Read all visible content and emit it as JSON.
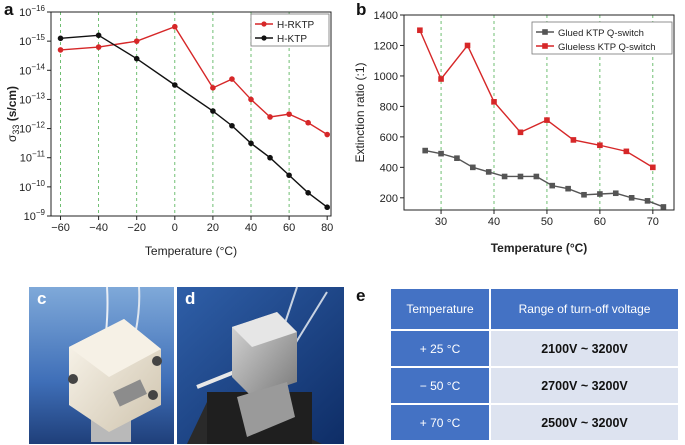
{
  "panels": {
    "a": "a",
    "b": "b",
    "c": "c",
    "d": "d",
    "e": "e"
  },
  "colors": {
    "red": "#d62728",
    "black": "#111111",
    "gray": "#555555",
    "grid": "#4caf50",
    "table_header": "#4472c4",
    "table_cell": "#dde3f0"
  },
  "chart_data": [
    {
      "panel": "a",
      "type": "line",
      "xlabel": "Temperature (°C)",
      "ylabel": "σ33 (s/cm)",
      "ylabel_main": "σ",
      "ylabel_sub": "33",
      "ylabel_unit": " (s/cm)",
      "yscale": "log",
      "xlim": [
        -65,
        82
      ],
      "ylim": [
        1e-09,
        1e-16
      ],
      "x_ticks": [
        "−60",
        "−40",
        "−20",
        "0",
        "20",
        "40",
        "60",
        "80"
      ],
      "y_ticks": [
        {
          "base": "10",
          "exp": "−16"
        },
        {
          "base": "10",
          "exp": "−15"
        },
        {
          "base": "10",
          "exp": "−14"
        },
        {
          "base": "10",
          "exp": "−13"
        },
        {
          "base": "10",
          "exp": "−12"
        },
        {
          "base": "10",
          "exp": "−11"
        },
        {
          "base": "10",
          "exp": "−10"
        },
        {
          "base": "10",
          "exp": "−9"
        }
      ],
      "grid": "vertical dashed",
      "legend_position": "top-right",
      "series": [
        {
          "name": "H-RKTP",
          "color": "#d62728",
          "x": [
            -60,
            -40,
            -20,
            0,
            20,
            30,
            40,
            50,
            60,
            70,
            80
          ],
          "y": [
            2e-15,
            1.6e-15,
            1e-15,
            3.2e-16,
            4e-14,
            2e-14,
            1e-13,
            4e-13,
            3.2e-13,
            6.3e-13,
            1.6e-12
          ]
        },
        {
          "name": "H-KTP",
          "color": "#111111",
          "x": [
            -60,
            -40,
            -20,
            0,
            20,
            30,
            40,
            50,
            60,
            70,
            80
          ],
          "y": [
            8e-16,
            6.3e-16,
            4e-15,
            3.2e-14,
            2.5e-13,
            8e-13,
            3.2e-12,
            1e-11,
            4e-11,
            1.6e-10,
            5e-10
          ]
        }
      ]
    },
    {
      "panel": "b",
      "type": "line",
      "xlabel": "Temperature (°C)",
      "ylabel": "Extinction ratio (:1)",
      "xlim": [
        23,
        74
      ],
      "ylim": [
        120,
        1400
      ],
      "x_ticks": [
        "30",
        "40",
        "50",
        "60",
        "70"
      ],
      "y_ticks": [
        "200",
        "400",
        "600",
        "800",
        "1000",
        "1200",
        "1400"
      ],
      "grid": "vertical dashed",
      "legend_position": "top-right",
      "series": [
        {
          "name": "Glued KTP Q-switch",
          "color": "#555555",
          "x": [
            27,
            30,
            33,
            36,
            39,
            42,
            45,
            48,
            51,
            54,
            57,
            60,
            63,
            66,
            69,
            72
          ],
          "y": [
            510,
            490,
            460,
            400,
            370,
            340,
            340,
            340,
            280,
            260,
            220,
            225,
            230,
            200,
            180,
            140
          ]
        },
        {
          "name": "Glueless KTP Q-switch",
          "color": "#d62728",
          "x": [
            26,
            30,
            35,
            40,
            45,
            50,
            55,
            60,
            65,
            70
          ],
          "y": [
            1300,
            980,
            1200,
            830,
            630,
            710,
            580,
            545,
            505,
            400
          ]
        }
      ]
    }
  ],
  "table": {
    "headers": [
      "Temperature",
      "Range of turn-off voltage"
    ],
    "rows": [
      [
        "+ 25 °C",
        "2100V ~ 3200V"
      ],
      [
        "− 50 °C",
        "2700V ~ 3200V"
      ],
      [
        "+ 70 °C",
        "2500V ~ 3200V"
      ]
    ]
  }
}
